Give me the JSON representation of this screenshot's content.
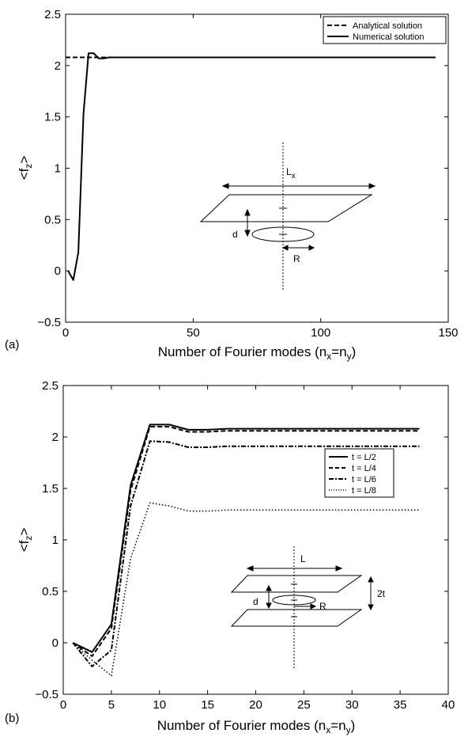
{
  "chart_data": [
    {
      "type": "line",
      "panel_label": "(a)",
      "xlabel": "Number of Fourier modes (n",
      "xlabel_sub1": "x",
      "xlabel_mid": "=n",
      "xlabel_sub2": "y",
      "xlabel_end": ")",
      "ylabel_main": "<f",
      "ylabel_sub": "z",
      "ylabel_end": ">",
      "xlim": [
        0,
        150
      ],
      "ylim": [
        -0.5,
        2.5
      ],
      "xticks": [
        "0",
        "50",
        "100",
        "150"
      ],
      "xtick_values": [
        0,
        50,
        100,
        150
      ],
      "yticks": [
        "−0.5",
        "0",
        "0.5",
        "1",
        "1.5",
        "2",
        "2.5"
      ],
      "ytick_values": [
        -0.5,
        0,
        0.5,
        1,
        1.5,
        2,
        2.5
      ],
      "legend_position": "top-right",
      "series": [
        {
          "name": "Analytical solution",
          "style": "dashed",
          "x": [
            0,
            145
          ],
          "y": [
            2.08,
            2.08
          ]
        },
        {
          "name": "Numerical solution",
          "style": "solid",
          "x": [
            1,
            3,
            5,
            7,
            9,
            11,
            13,
            15,
            17,
            19,
            145
          ],
          "y": [
            0.0,
            -0.09,
            0.18,
            1.53,
            2.12,
            2.12,
            2.07,
            2.07,
            2.08,
            2.08,
            2.08
          ]
        }
      ],
      "inset_labels": {
        "width": "L",
        "width_sub": "x",
        "distance": "d",
        "radius": "R"
      }
    },
    {
      "type": "line",
      "panel_label": "(b)",
      "xlabel": "Number of Fourier modes (n",
      "xlabel_sub1": "x",
      "xlabel_mid": "=n",
      "xlabel_sub2": "y",
      "xlabel_end": ")",
      "ylabel_main": "<f",
      "ylabel_sub": "z",
      "ylabel_end": ">",
      "xlim": [
        0,
        40
      ],
      "ylim": [
        -0.5,
        2.5
      ],
      "xticks": [
        "0",
        "5",
        "10",
        "15",
        "20",
        "25",
        "30",
        "35",
        "40"
      ],
      "xtick_values": [
        0,
        5,
        10,
        15,
        20,
        25,
        30,
        35,
        40
      ],
      "yticks": [
        "−0.5",
        "0",
        "0.5",
        "1",
        "1.5",
        "2",
        "2.5"
      ],
      "ytick_values": [
        -0.5,
        0,
        0.5,
        1,
        1.5,
        2,
        2.5
      ],
      "legend_position": "right",
      "series": [
        {
          "name": "t = L/2",
          "style": "solid",
          "x": [
            1,
            3,
            5,
            7,
            9,
            11,
            13,
            15,
            17,
            19,
            21,
            23,
            25,
            27,
            29,
            31,
            33,
            35,
            37
          ],
          "y": [
            0.0,
            -0.09,
            0.18,
            1.53,
            2.12,
            2.12,
            2.07,
            2.07,
            2.08,
            2.08,
            2.08,
            2.08,
            2.08,
            2.08,
            2.08,
            2.08,
            2.08,
            2.08,
            2.08
          ]
        },
        {
          "name": "t = L/4",
          "style": "dashed",
          "x": [
            1,
            3,
            5,
            7,
            9,
            11,
            13,
            15,
            17,
            19,
            21,
            23,
            25,
            27,
            29,
            31,
            33,
            35,
            37
          ],
          "y": [
            0.0,
            -0.13,
            0.14,
            1.48,
            2.1,
            2.1,
            2.05,
            2.05,
            2.06,
            2.06,
            2.06,
            2.06,
            2.06,
            2.06,
            2.06,
            2.06,
            2.06,
            2.06,
            2.06
          ]
        },
        {
          "name": "t = L/6",
          "style": "dashdot",
          "x": [
            1,
            3,
            5,
            7,
            9,
            11,
            13,
            15,
            17,
            19,
            21,
            23,
            25,
            27,
            29,
            31,
            33,
            35,
            37
          ],
          "y": [
            0.0,
            -0.23,
            -0.07,
            1.33,
            1.96,
            1.95,
            1.9,
            1.9,
            1.91,
            1.91,
            1.91,
            1.91,
            1.91,
            1.91,
            1.91,
            1.91,
            1.91,
            1.91,
            1.91
          ]
        },
        {
          "name": "t = L/8",
          "style": "dotted",
          "x": [
            1,
            3,
            5,
            7,
            9,
            11,
            13,
            15,
            17,
            19,
            21,
            23,
            25,
            27,
            29,
            31,
            33,
            35,
            37
          ],
          "y": [
            0.0,
            -0.17,
            -0.32,
            0.82,
            1.36,
            1.33,
            1.28,
            1.28,
            1.29,
            1.29,
            1.29,
            1.29,
            1.29,
            1.29,
            1.29,
            1.29,
            1.29,
            1.29,
            1.29
          ]
        }
      ],
      "inset_labels": {
        "width": "L",
        "distance": "d",
        "radius": "R",
        "spacing": "2t"
      }
    }
  ]
}
